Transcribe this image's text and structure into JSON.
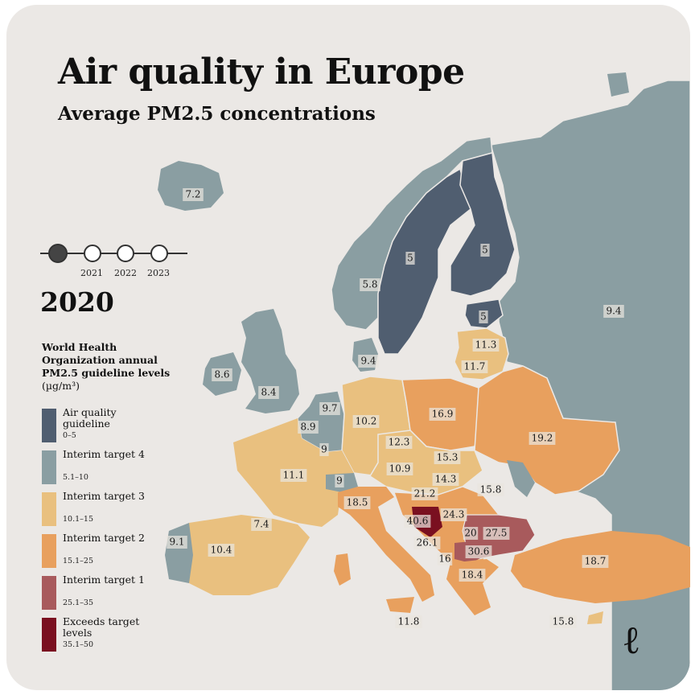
{
  "title": "Air quality in Europe",
  "subtitle": "Average PM2.5 concentrations",
  "timeline": {
    "selected_year": "2020",
    "other_years": [
      "2021",
      "2022",
      "2023"
    ]
  },
  "legend": {
    "title": "World Health Organization annual PM2.5 guideline levels",
    "unit": "(µg/m³)",
    "items": [
      {
        "label": "Air quality guideline",
        "range": "0–5",
        "color": "#505e70"
      },
      {
        "label": "Interim target 4",
        "range": "5.1–10",
        "color": "#8a9ea2"
      },
      {
        "label": "Interim target 3",
        "range": "10.1–15",
        "color": "#e9c07f"
      },
      {
        "label": "Interim target 2",
        "range": "15.1–25",
        "color": "#e8a05e"
      },
      {
        "label": "Interim target 1",
        "range": "25.1–35",
        "color": "#a85a5c"
      },
      {
        "label": "Exceeds target levels",
        "range": "35.1–50",
        "color": "#7a1020"
      }
    ]
  },
  "countries": [
    {
      "name": "Iceland",
      "value": "7.2"
    },
    {
      "name": "Norway",
      "value": "5.8"
    },
    {
      "name": "Sweden",
      "value": "5"
    },
    {
      "name": "Finland",
      "value": "5"
    },
    {
      "name": "Estonia",
      "value": "5"
    },
    {
      "name": "Russia",
      "value": "9.4"
    },
    {
      "name": "Latvia",
      "value": "11.3"
    },
    {
      "name": "Lithuania",
      "value": "11.7"
    },
    {
      "name": "Denmark",
      "value": "9.4"
    },
    {
      "name": "Ireland",
      "value": "8.6"
    },
    {
      "name": "United Kingdom",
      "value": "8.4"
    },
    {
      "name": "Netherlands",
      "value": "9.7"
    },
    {
      "name": "Belgium",
      "value": "8.9"
    },
    {
      "name": "Luxembourg",
      "value": "9"
    },
    {
      "name": "Germany",
      "value": "10.2"
    },
    {
      "name": "Poland",
      "value": "16.9"
    },
    {
      "name": "Belarus",
      "value": "19.2"
    },
    {
      "name": "Czechia",
      "value": "12.3"
    },
    {
      "name": "Slovakia",
      "value": "15.3"
    },
    {
      "name": "Austria",
      "value": "10.9"
    },
    {
      "name": "Hungary",
      "value": "14.3"
    },
    {
      "name": "Ukraine",
      "value": "15.8"
    },
    {
      "name": "France",
      "value": "11.1"
    },
    {
      "name": "Switzerland",
      "value": "9"
    },
    {
      "name": "Slovenia",
      "value": "21.2"
    },
    {
      "name": "Italy",
      "value": "18.5"
    },
    {
      "name": "Croatia",
      "value": "24.3"
    },
    {
      "name": "Bosnia and Herzegovina",
      "value": "40.6"
    },
    {
      "name": "Serbia",
      "value": "20"
    },
    {
      "name": "Romania",
      "value": "27.5"
    },
    {
      "name": "Montenegro",
      "value": "26.1"
    },
    {
      "name": "North Macedonia",
      "value": "30.6"
    },
    {
      "name": "Albania",
      "value": "16"
    },
    {
      "name": "Greece",
      "value": "18.4"
    },
    {
      "name": "Turkey",
      "value": "18.7"
    },
    {
      "name": "Cyprus",
      "value": "15.8"
    },
    {
      "name": "Malta",
      "value": "11.8"
    },
    {
      "name": "Spain",
      "value": "10.4"
    },
    {
      "name": "Andorra",
      "value": "7.4"
    },
    {
      "name": "Portugal",
      "value": "9.1"
    }
  ]
}
